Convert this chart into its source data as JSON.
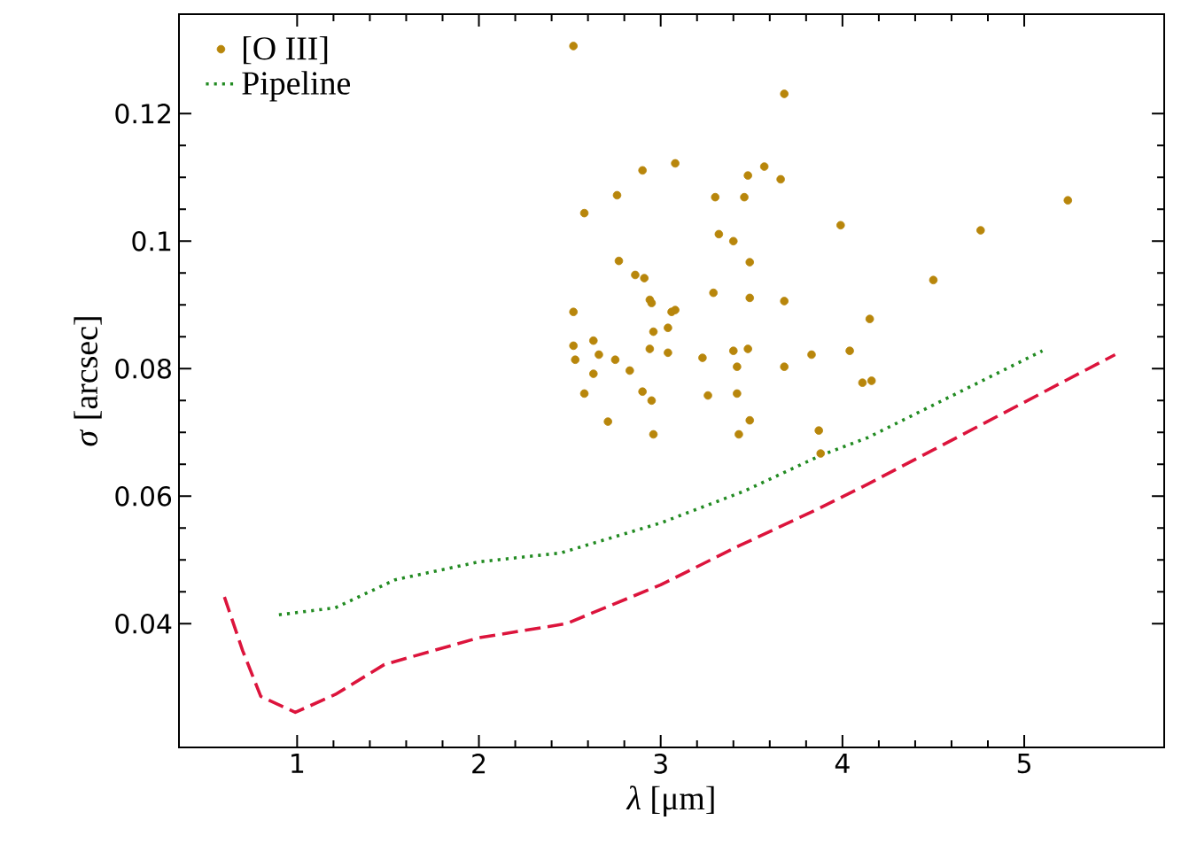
{
  "chart_data": {
    "type": "line",
    "xlabel": "*λ* [μm]",
    "ylabel": "*σ* [arcsec]",
    "xlim": [
      0.35,
      5.77
    ],
    "ylim": [
      0.0206,
      0.1356
    ],
    "xticks": [
      1,
      2,
      3,
      4,
      5
    ],
    "yticks": [
      0.04,
      0.06,
      0.08,
      0.1,
      0.12
    ],
    "grid": false,
    "legend": "top left",
    "series": [
      {
        "type": "line",
        "color": "#dc143c",
        "line_style": "dashed",
        "marker": "none",
        "x": [
          0.6,
          0.7,
          0.8,
          0.99,
          1.21,
          1.48,
          2.0,
          2.48,
          3.0,
          3.43,
          3.85,
          4.14,
          5.5
        ],
        "values": [
          0.0442,
          0.0358,
          0.0286,
          0.0261,
          0.0289,
          0.0336,
          0.0378,
          0.04,
          0.0461,
          0.0522,
          0.0578,
          0.0619,
          0.0822
        ]
      },
      {
        "type": "scatter",
        "name": "[O III]",
        "color": "#b8860b",
        "marker": "circle",
        "x": [
          2.52,
          3.68,
          2.9,
          3.08,
          3.48,
          3.57,
          3.66,
          2.76,
          3.3,
          3.46,
          2.58,
          3.99,
          3.32,
          3.4,
          2.77,
          3.49,
          2.86,
          2.91,
          3.29,
          3.49,
          3.68,
          2.94,
          2.95,
          2.52,
          3.06,
          3.08,
          4.5,
          4.15,
          2.96,
          3.04,
          2.52,
          2.63,
          2.66,
          2.53,
          2.75,
          2.94,
          3.04,
          3.23,
          3.4,
          3.48,
          3.42,
          3.68,
          3.83,
          4.04,
          2.63,
          2.83,
          2.58,
          2.9,
          2.95,
          3.26,
          3.42,
          4.11,
          4.16,
          2.71,
          2.96,
          3.49,
          3.43,
          3.87,
          3.88,
          5.24,
          4.76
        ],
        "values": [
          0.1306,
          0.1231,
          0.1111,
          0.1122,
          0.1103,
          0.1117,
          0.1097,
          0.1072,
          0.1069,
          0.1069,
          0.1044,
          0.1025,
          0.1011,
          0.1,
          0.0969,
          0.0967,
          0.0947,
          0.0942,
          0.0919,
          0.0911,
          0.0906,
          0.0908,
          0.0903,
          0.0889,
          0.0889,
          0.0892,
          0.0939,
          0.0878,
          0.0858,
          0.0864,
          0.0836,
          0.0844,
          0.0822,
          0.0814,
          0.0814,
          0.0831,
          0.0825,
          0.0817,
          0.0828,
          0.0831,
          0.0803,
          0.0803,
          0.0822,
          0.0828,
          0.0792,
          0.0797,
          0.0761,
          0.0764,
          0.075,
          0.0758,
          0.0761,
          0.0778,
          0.0781,
          0.0717,
          0.0697,
          0.0719,
          0.0697,
          0.0703,
          0.0667,
          0.1064,
          0.1017
        ]
      },
      {
        "type": "line",
        "name": "Pipeline",
        "color": "#228b22",
        "line_style": "dotted",
        "marker": "none",
        "x": [
          0.9,
          1.21,
          1.54,
          2.0,
          2.45,
          3.0,
          3.46,
          3.88,
          4.14,
          5.1
        ],
        "values": [
          0.0414,
          0.0425,
          0.0469,
          0.0497,
          0.0511,
          0.0558,
          0.0608,
          0.0664,
          0.0692,
          0.0828
        ]
      }
    ]
  }
}
